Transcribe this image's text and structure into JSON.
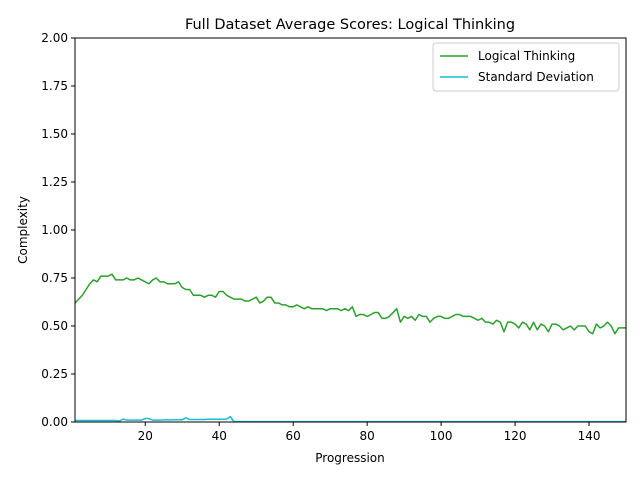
{
  "chart_data": {
    "type": "line",
    "title": "Full Dataset Average Scores: Logical Thinking",
    "xlabel": "Progression",
    "ylabel": "Complexity",
    "xlim": [
      1,
      150
    ],
    "ylim": [
      0,
      2
    ],
    "xticks": [
      "20",
      "40",
      "60",
      "80",
      "100",
      "120",
      "140"
    ],
    "xtick_values": [
      20,
      40,
      60,
      80,
      100,
      120,
      140
    ],
    "yticks": [
      "0.00",
      "0.25",
      "0.50",
      "0.75",
      "1.00",
      "1.25",
      "1.50",
      "1.75",
      "2.00"
    ],
    "ytick_values": [
      0,
      0.25,
      0.5,
      0.75,
      1.0,
      1.25,
      1.5,
      1.75,
      2.0
    ],
    "grid": false,
    "legend_position": "top-right",
    "series": [
      {
        "name": "Logical Thinking",
        "color": "#2ca02c",
        "x": [
          1,
          2,
          3,
          4,
          5,
          6,
          7,
          8,
          9,
          10,
          11,
          12,
          13,
          14,
          15,
          16,
          17,
          18,
          19,
          20,
          21,
          22,
          23,
          24,
          25,
          26,
          27,
          28,
          29,
          30,
          31,
          32,
          33,
          34,
          35,
          36,
          37,
          38,
          39,
          40,
          41,
          42,
          43,
          44,
          45,
          46,
          47,
          48,
          49,
          50,
          51,
          52,
          53,
          54,
          55,
          56,
          57,
          58,
          59,
          60,
          61,
          62,
          63,
          64,
          65,
          66,
          67,
          68,
          69,
          70,
          71,
          72,
          73,
          74,
          75,
          76,
          77,
          78,
          79,
          80,
          81,
          82,
          83,
          84,
          85,
          86,
          87,
          88,
          89,
          90,
          91,
          92,
          93,
          94,
          95,
          96,
          97,
          98,
          99,
          100,
          101,
          102,
          103,
          104,
          105,
          106,
          107,
          108,
          109,
          110,
          111,
          112,
          113,
          114,
          115,
          116,
          117,
          118,
          119,
          120,
          121,
          122,
          123,
          124,
          125,
          126,
          127,
          128,
          129,
          130,
          131,
          132,
          133,
          134,
          135,
          136,
          137,
          138,
          139,
          140,
          141,
          142,
          143,
          144,
          145,
          146,
          147,
          148,
          149,
          150
        ],
        "values": [
          0.62,
          0.64,
          0.66,
          0.69,
          0.72,
          0.74,
          0.73,
          0.76,
          0.76,
          0.76,
          0.77,
          0.74,
          0.74,
          0.74,
          0.75,
          0.74,
          0.74,
          0.75,
          0.74,
          0.73,
          0.72,
          0.74,
          0.75,
          0.73,
          0.73,
          0.72,
          0.72,
          0.72,
          0.73,
          0.7,
          0.69,
          0.69,
          0.66,
          0.66,
          0.66,
          0.65,
          0.66,
          0.66,
          0.65,
          0.68,
          0.68,
          0.66,
          0.65,
          0.64,
          0.64,
          0.64,
          0.63,
          0.63,
          0.64,
          0.65,
          0.62,
          0.63,
          0.65,
          0.65,
          0.62,
          0.62,
          0.61,
          0.61,
          0.6,
          0.6,
          0.61,
          0.6,
          0.59,
          0.6,
          0.59,
          0.59,
          0.59,
          0.59,
          0.58,
          0.59,
          0.59,
          0.59,
          0.58,
          0.59,
          0.58,
          0.6,
          0.55,
          0.56,
          0.56,
          0.55,
          0.56,
          0.57,
          0.57,
          0.54,
          0.54,
          0.55,
          0.57,
          0.59,
          0.52,
          0.55,
          0.54,
          0.55,
          0.53,
          0.56,
          0.55,
          0.55,
          0.52,
          0.54,
          0.55,
          0.55,
          0.54,
          0.54,
          0.55,
          0.56,
          0.56,
          0.55,
          0.55,
          0.55,
          0.54,
          0.53,
          0.54,
          0.52,
          0.52,
          0.51,
          0.53,
          0.52,
          0.47,
          0.52,
          0.52,
          0.51,
          0.49,
          0.52,
          0.51,
          0.48,
          0.52,
          0.48,
          0.51,
          0.5,
          0.47,
          0.51,
          0.51,
          0.5,
          0.48,
          0.49,
          0.5,
          0.48,
          0.5,
          0.5,
          0.5,
          0.47,
          0.46,
          0.51,
          0.49,
          0.5,
          0.52,
          0.5,
          0.46,
          0.49,
          0.49,
          0.49
        ]
      },
      {
        "name": "Standard Deviation",
        "color": "#17becf",
        "x": [
          1,
          2,
          3,
          4,
          5,
          6,
          7,
          8,
          9,
          10,
          11,
          12,
          13,
          14,
          15,
          16,
          17,
          18,
          19,
          20,
          21,
          22,
          23,
          24,
          25,
          26,
          27,
          28,
          29,
          30,
          31,
          32,
          33,
          34,
          35,
          36,
          37,
          38,
          39,
          40,
          41,
          42,
          43,
          44,
          45,
          46,
          47,
          48,
          49,
          50,
          60,
          70,
          80,
          90,
          100,
          110,
          120,
          130,
          140,
          150
        ],
        "values": [
          0.008,
          0.008,
          0.008,
          0.008,
          0.008,
          0.008,
          0.008,
          0.008,
          0.008,
          0.008,
          0.008,
          0.008,
          0.005,
          0.015,
          0.01,
          0.01,
          0.01,
          0.01,
          0.01,
          0.018,
          0.018,
          0.01,
          0.01,
          0.01,
          0.011,
          0.011,
          0.011,
          0.012,
          0.012,
          0.012,
          0.022,
          0.013,
          0.013,
          0.013,
          0.013,
          0.013,
          0.014,
          0.014,
          0.014,
          0.014,
          0.014,
          0.015,
          0.028,
          0.002,
          0.002,
          0.002,
          0.002,
          0.002,
          0.002,
          0.002,
          0.002,
          0.002,
          0.002,
          0.002,
          0.002,
          0.002,
          0.002,
          0.002,
          0.002,
          0.002
        ]
      }
    ]
  }
}
